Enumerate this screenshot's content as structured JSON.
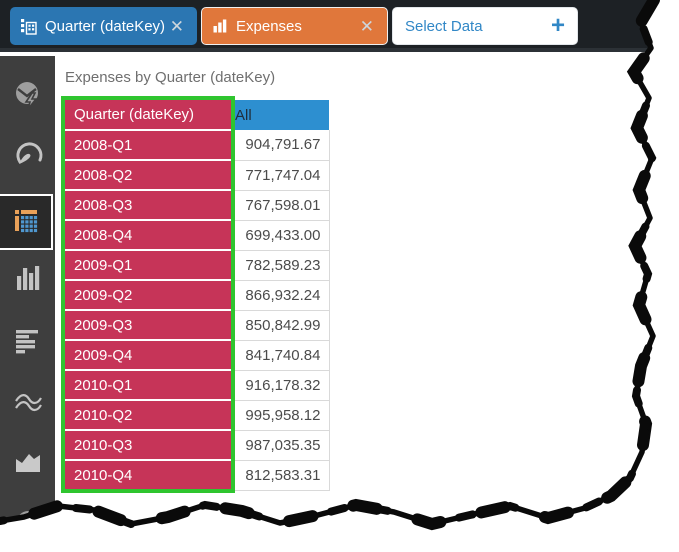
{
  "topbar": {
    "field_chip": {
      "label": "Quarter (dateKey)",
      "close_icon": "✕"
    },
    "measure_chip": {
      "label": "Expenses",
      "close_icon": "✕"
    },
    "select_chip": {
      "label": "Select Data",
      "plus_icon": "+"
    }
  },
  "sidebar": {
    "items": [
      {
        "id": "smart-insights",
        "selected": false
      },
      {
        "id": "gauge-chart",
        "selected": false
      },
      {
        "id": "grid-table",
        "selected": true
      },
      {
        "id": "column-chart",
        "selected": false
      },
      {
        "id": "bar-chart",
        "selected": false
      },
      {
        "id": "line-chart",
        "selected": false
      },
      {
        "id": "area-chart",
        "selected": false
      },
      {
        "id": "pie-chart",
        "selected": false
      }
    ]
  },
  "main": {
    "title": "Expenses by Quarter (dateKey)"
  },
  "table": {
    "columns": [
      "Quarter (dateKey)",
      "All"
    ],
    "rows": [
      [
        "2008-Q1",
        "904,791.67"
      ],
      [
        "2008-Q2",
        "771,747.04"
      ],
      [
        "2008-Q3",
        "767,598.01"
      ],
      [
        "2008-Q4",
        "699,433.00"
      ],
      [
        "2009-Q1",
        "782,589.23"
      ],
      [
        "2009-Q2",
        "866,932.24"
      ],
      [
        "2009-Q3",
        "850,842.99"
      ],
      [
        "2009-Q4",
        "841,740.84"
      ],
      [
        "2010-Q1",
        "916,178.32"
      ],
      [
        "2010-Q2",
        "995,958.12"
      ],
      [
        "2010-Q3",
        "987,035.35"
      ],
      [
        "2010-Q4",
        "812,583.31"
      ]
    ]
  },
  "colors": {
    "dimension_chip": "#2b76b2",
    "measure_chip": "#e0773b",
    "dimension_header": "#c63458",
    "value_header": "#2d8fd0",
    "selection_highlight": "#2fc52f"
  },
  "chart_data": {
    "type": "table",
    "title": "Expenses by Quarter (dateKey)",
    "categories": [
      "2008-Q1",
      "2008-Q2",
      "2008-Q3",
      "2008-Q4",
      "2009-Q1",
      "2009-Q2",
      "2009-Q3",
      "2009-Q4",
      "2010-Q1",
      "2010-Q2",
      "2010-Q3",
      "2010-Q4"
    ],
    "series": [
      {
        "name": "Expenses (All)",
        "values": [
          904791.67,
          771747.04,
          767598.01,
          699433.0,
          782589.23,
          866932.24,
          850842.99,
          841740.84,
          916178.32,
          995958.12,
          987035.35,
          812583.31
        ]
      }
    ]
  }
}
